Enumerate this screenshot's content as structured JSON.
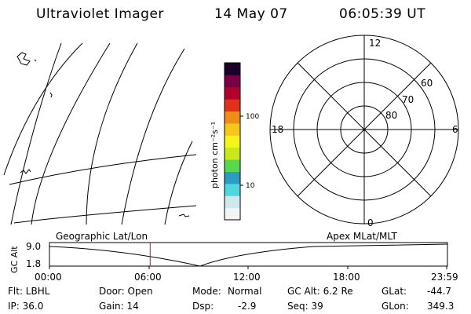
{
  "header": {
    "instrument": "Ultraviolet Imager",
    "date": "14 May 07",
    "time": "06:05:39 UT"
  },
  "colorbar": {
    "unit_label": "photon cm⁻²s⁻¹",
    "ticks": [
      "100",
      "10"
    ]
  },
  "polar_plot": {
    "mlt_labels": {
      "top": "12",
      "left": "18",
      "right": "6",
      "bottom": "0"
    },
    "mlat_labels": [
      "60",
      "70",
      "80"
    ]
  },
  "timeline": {
    "left_title": "Geographic Lat/Lon",
    "right_title": "Apex MLat/MLT",
    "axis_label": "GC Alt",
    "y_ticks": [
      "9.0",
      "1.8"
    ],
    "x_ticks": [
      "00:00",
      "06:00",
      "12:00",
      "18:00",
      "23:59"
    ],
    "current_time_fraction": 0.253
  },
  "status": {
    "col1": [
      "Flt: LBHL",
      "IP: 36.0"
    ],
    "col2": [
      "Door: Open",
      "Gain: 14"
    ],
    "col3a": [
      "Mode:",
      "Dsp:"
    ],
    "col3b": [
      "Normal",
      "-2.9"
    ],
    "col4": [
      "GC Alt: 6.2 Re",
      "Seq: 39"
    ],
    "col5a": [
      "GLat:",
      "GLon:"
    ],
    "col5b": [
      "-44.7",
      "349.3"
    ]
  },
  "colors": {
    "current_time_marker": "#b22222",
    "colorbar": [
      "#f4f4f4",
      "#cfe8ee",
      "#4fd6e0",
      "#2b9cc4",
      "#58d84f",
      "#c8e81c",
      "#f5f51a",
      "#f4c81a",
      "#f08c18",
      "#e33018",
      "#b3002c",
      "#7a0046",
      "#1a0028"
    ]
  }
}
